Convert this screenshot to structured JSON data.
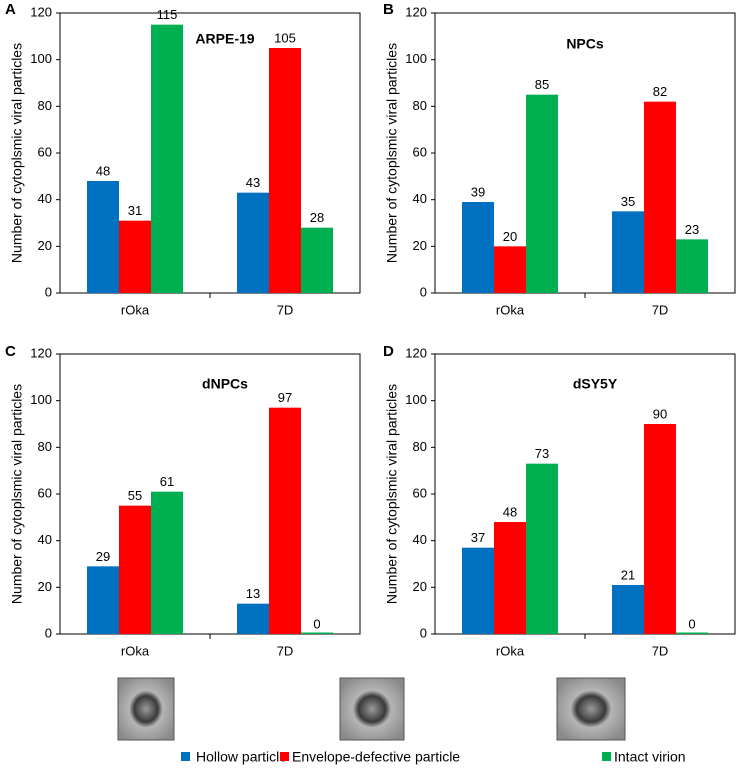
{
  "chart_data": [
    {
      "type": "bar",
      "panel": "A",
      "title": "ARPE-19",
      "ylabel": "Number of cytoplsmic viral particles",
      "categories": [
        "rOka",
        "7D"
      ],
      "series": [
        {
          "values": [
            48,
            43
          ]
        },
        {
          "values": [
            31,
            105
          ]
        },
        {
          "values": [
            115,
            28
          ]
        }
      ],
      "ylim": [
        0,
        120
      ],
      "yticks": [
        0,
        20,
        40,
        60,
        80,
        100,
        120
      ]
    },
    {
      "type": "bar",
      "panel": "B",
      "title": "NPCs",
      "ylabel": "Number of cytoplsmic viral particles",
      "categories": [
        "rOka",
        "7D"
      ],
      "series": [
        {
          "values": [
            39,
            35
          ]
        },
        {
          "values": [
            20,
            82
          ]
        },
        {
          "values": [
            85,
            23
          ]
        }
      ],
      "ylim": [
        0,
        120
      ],
      "yticks": [
        0,
        20,
        40,
        60,
        80,
        100,
        120
      ]
    },
    {
      "type": "bar",
      "panel": "C",
      "title": "dNPCs",
      "ylabel": "Number of cytoplsmic viral particles",
      "categories": [
        "rOka",
        "7D"
      ],
      "series": [
        {
          "values": [
            29,
            13
          ]
        },
        {
          "values": [
            55,
            97
          ]
        },
        {
          "values": [
            61,
            0
          ]
        }
      ],
      "ylim": [
        0,
        120
      ],
      "yticks": [
        0,
        20,
        40,
        60,
        80,
        100,
        120
      ]
    },
    {
      "type": "bar",
      "panel": "D",
      "title": "dSY5Y",
      "ylabel": "Number of cytoplsmic viral particles",
      "categories": [
        "rOka",
        "7D"
      ],
      "series": [
        {
          "values": [
            37,
            21
          ]
        },
        {
          "values": [
            48,
            90
          ]
        },
        {
          "values": [
            73,
            0
          ]
        }
      ],
      "ylim": [
        0,
        120
      ],
      "yticks": [
        0,
        20,
        40,
        60,
        80,
        100,
        120
      ]
    }
  ],
  "legend": [
    {
      "name": "Hollow particle",
      "color": "#0070c0"
    },
    {
      "name": "Envelope-defective particle",
      "color": "#ff0000"
    },
    {
      "name": "Intact virion",
      "color": "#00b050"
    }
  ]
}
